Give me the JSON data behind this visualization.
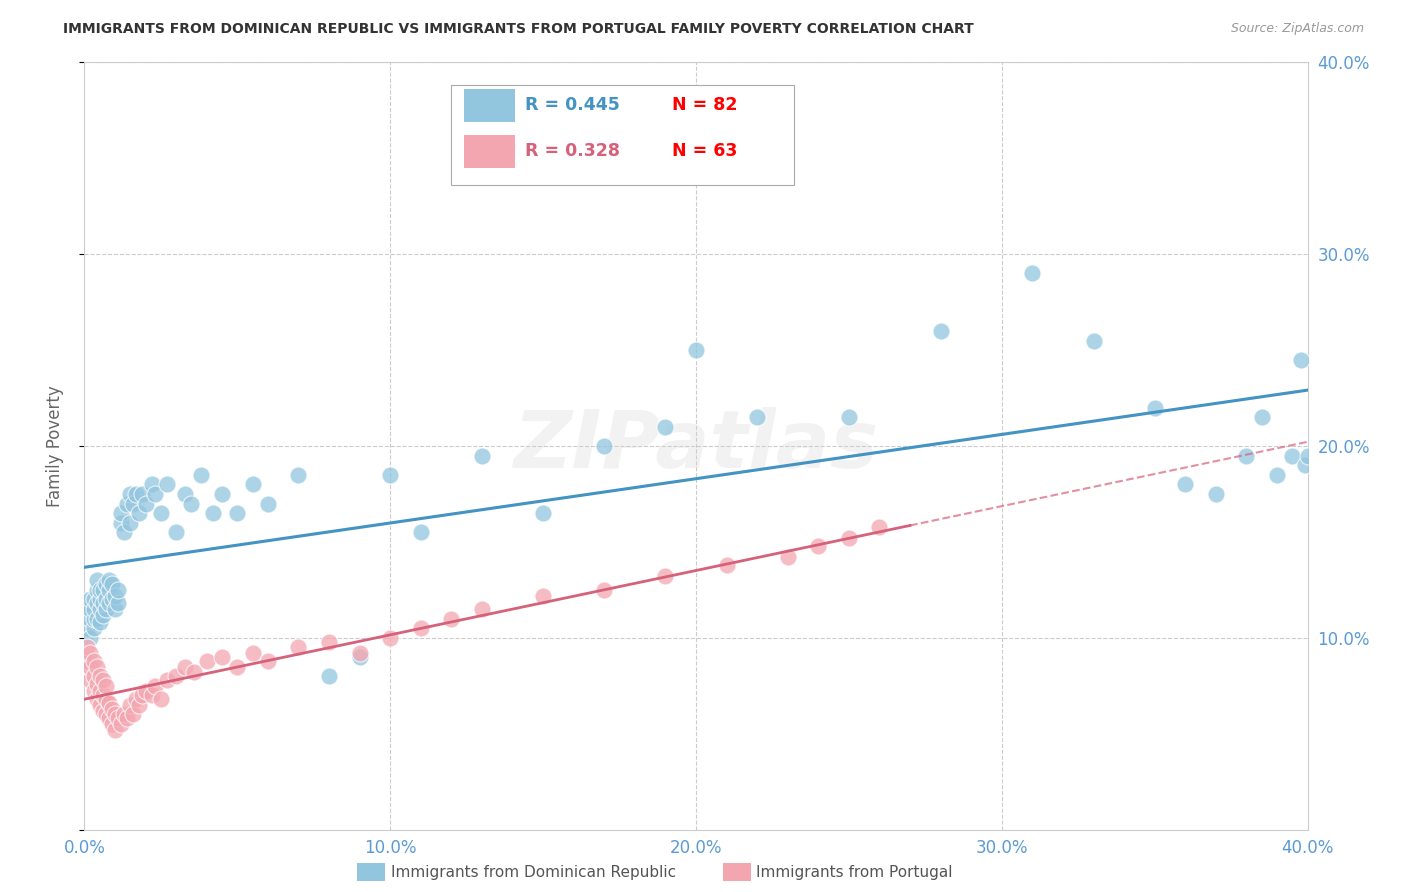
{
  "title": "IMMIGRANTS FROM DOMINICAN REPUBLIC VS IMMIGRANTS FROM PORTUGAL FAMILY POVERTY CORRELATION CHART",
  "source": "Source: ZipAtlas.com",
  "ylabel": "Family Poverty",
  "yticks": [
    0.0,
    0.1,
    0.2,
    0.3,
    0.4
  ],
  "xticks": [
    0.0,
    0.1,
    0.2,
    0.3,
    0.4
  ],
  "xlim": [
    0.0,
    0.4
  ],
  "ylim": [
    0.0,
    0.4
  ],
  "series1": {
    "label": "Immigrants from Dominican Republic",
    "R": 0.445,
    "N": 82,
    "color": "#92c5de",
    "line_color": "#4393c3",
    "x": [
      0.001,
      0.001,
      0.002,
      0.002,
      0.002,
      0.002,
      0.003,
      0.003,
      0.003,
      0.003,
      0.004,
      0.004,
      0.004,
      0.004,
      0.005,
      0.005,
      0.005,
      0.005,
      0.006,
      0.006,
      0.006,
      0.007,
      0.007,
      0.007,
      0.008,
      0.008,
      0.008,
      0.009,
      0.009,
      0.01,
      0.01,
      0.011,
      0.011,
      0.012,
      0.012,
      0.013,
      0.014,
      0.015,
      0.015,
      0.016,
      0.017,
      0.018,
      0.019,
      0.02,
      0.022,
      0.023,
      0.025,
      0.027,
      0.03,
      0.033,
      0.035,
      0.038,
      0.042,
      0.045,
      0.05,
      0.055,
      0.06,
      0.07,
      0.08,
      0.09,
      0.1,
      0.11,
      0.13,
      0.15,
      0.17,
      0.19,
      0.2,
      0.22,
      0.25,
      0.28,
      0.31,
      0.33,
      0.35,
      0.36,
      0.37,
      0.38,
      0.385,
      0.39,
      0.395,
      0.398,
      0.399,
      0.4
    ],
    "y": [
      0.105,
      0.115,
      0.1,
      0.11,
      0.115,
      0.12,
      0.105,
      0.11,
      0.115,
      0.12,
      0.11,
      0.118,
      0.125,
      0.13,
      0.108,
      0.115,
      0.12,
      0.125,
      0.112,
      0.118,
      0.125,
      0.115,
      0.12,
      0.128,
      0.118,
      0.125,
      0.13,
      0.12,
      0.128,
      0.115,
      0.122,
      0.118,
      0.125,
      0.16,
      0.165,
      0.155,
      0.17,
      0.16,
      0.175,
      0.17,
      0.175,
      0.165,
      0.175,
      0.17,
      0.18,
      0.175,
      0.165,
      0.18,
      0.155,
      0.175,
      0.17,
      0.185,
      0.165,
      0.175,
      0.165,
      0.18,
      0.17,
      0.185,
      0.08,
      0.09,
      0.185,
      0.155,
      0.195,
      0.165,
      0.2,
      0.21,
      0.25,
      0.215,
      0.215,
      0.26,
      0.29,
      0.255,
      0.22,
      0.18,
      0.175,
      0.195,
      0.215,
      0.185,
      0.195,
      0.245,
      0.19,
      0.195
    ]
  },
  "series2": {
    "label": "Immigrants from Portugal",
    "R": 0.328,
    "N": 63,
    "color": "#f4a6b0",
    "line_color": "#d6617a",
    "x": [
      0.001,
      0.001,
      0.002,
      0.002,
      0.002,
      0.003,
      0.003,
      0.003,
      0.004,
      0.004,
      0.004,
      0.005,
      0.005,
      0.005,
      0.006,
      0.006,
      0.006,
      0.007,
      0.007,
      0.007,
      0.008,
      0.008,
      0.009,
      0.009,
      0.01,
      0.01,
      0.011,
      0.012,
      0.013,
      0.014,
      0.015,
      0.016,
      0.017,
      0.018,
      0.019,
      0.02,
      0.022,
      0.023,
      0.025,
      0.027,
      0.03,
      0.033,
      0.036,
      0.04,
      0.045,
      0.05,
      0.055,
      0.06,
      0.07,
      0.08,
      0.09,
      0.1,
      0.11,
      0.12,
      0.13,
      0.15,
      0.17,
      0.19,
      0.21,
      0.23,
      0.24,
      0.25,
      0.26
    ],
    "y": [
      0.088,
      0.095,
      0.078,
      0.085,
      0.092,
      0.072,
      0.08,
      0.088,
      0.068,
      0.076,
      0.085,
      0.065,
      0.072,
      0.08,
      0.062,
      0.07,
      0.078,
      0.06,
      0.068,
      0.075,
      0.058,
      0.066,
      0.055,
      0.063,
      0.052,
      0.06,
      0.058,
      0.055,
      0.06,
      0.058,
      0.065,
      0.06,
      0.068,
      0.065,
      0.07,
      0.072,
      0.07,
      0.075,
      0.068,
      0.078,
      0.08,
      0.085,
      0.082,
      0.088,
      0.09,
      0.085,
      0.092,
      0.088,
      0.095,
      0.098,
      0.092,
      0.1,
      0.105,
      0.11,
      0.115,
      0.122,
      0.125,
      0.132,
      0.138,
      0.142,
      0.148,
      0.152,
      0.158
    ]
  },
  "watermark": "ZIPatlas",
  "background_color": "#ffffff",
  "grid_color": "#cccccc",
  "title_color": "#333333",
  "axis_label_color": "#5b9bd5"
}
